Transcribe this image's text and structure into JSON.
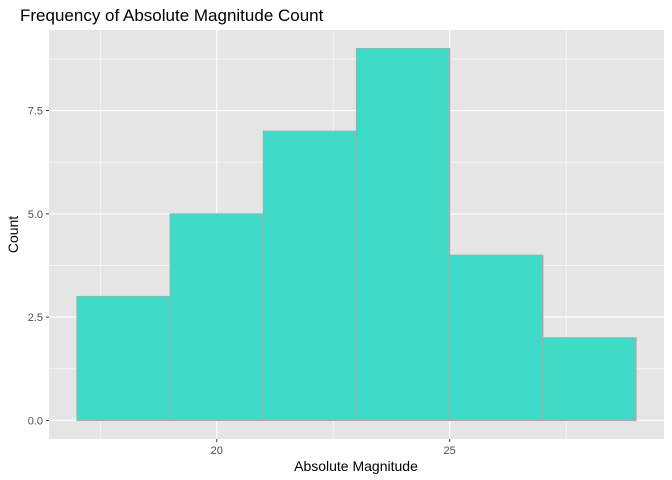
{
  "chart_data": {
    "type": "bar",
    "title": "Frequency of Absolute Magnitude Count",
    "xlabel": "Absolute Magnitude",
    "ylabel": "Count",
    "bins": [
      {
        "start": 17,
        "end": 19,
        "count": 3
      },
      {
        "start": 19,
        "end": 21,
        "count": 5
      },
      {
        "start": 21,
        "end": 23,
        "count": 7
      },
      {
        "start": 23,
        "end": 25,
        "count": 9
      },
      {
        "start": 25,
        "end": 27,
        "count": 4
      },
      {
        "start": 27,
        "end": 29,
        "count": 2
      }
    ],
    "xlim": [
      16.4,
      29.6
    ],
    "ylim": [
      -0.45,
      9.45
    ],
    "x_ticks": [
      20,
      25
    ],
    "x_tick_labels": [
      "20",
      "25"
    ],
    "y_ticks": [
      0,
      2.5,
      5,
      7.5
    ],
    "y_tick_labels": [
      "0.0",
      "2.5",
      "5.0",
      "7.5"
    ],
    "grid": true,
    "legend": "none",
    "colors": {
      "bar_fill": "#3ddbc8",
      "bar_outline": "#a9a9a9",
      "panel_background": "#e5e5e5",
      "grid": "#ffffff"
    }
  }
}
